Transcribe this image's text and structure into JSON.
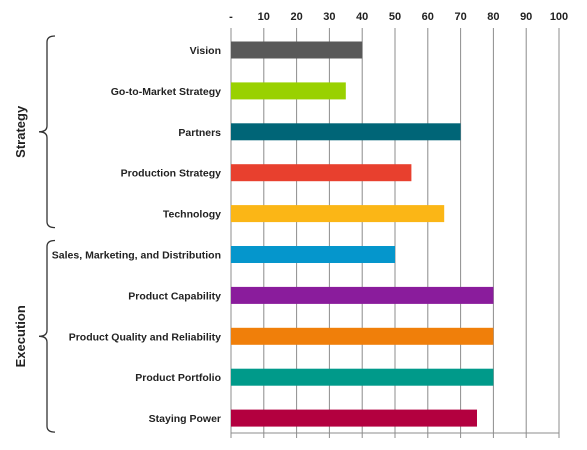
{
  "chart_data": {
    "type": "bar",
    "orientation": "horizontal",
    "title": "",
    "xlabel": "",
    "ylabel": "",
    "xlim": [
      0,
      100
    ],
    "x_ticks": [
      "-",
      "10",
      "20",
      "30",
      "40",
      "50",
      "60",
      "70",
      "80",
      "90",
      "100"
    ],
    "x_axis_position": "top",
    "grid": "vertical",
    "categories": [
      "Vision",
      "Go-to-Market Strategy",
      "Partners",
      "Production Strategy",
      "Technology",
      "Sales, Marketing, and Distribution",
      "Product Capability",
      "Product Quality and Reliability",
      "Product Portfolio",
      "Staying Power"
    ],
    "values": [
      40,
      35,
      70,
      55,
      65,
      50,
      80,
      80,
      80,
      75
    ],
    "colors": [
      "#595959",
      "#99d100",
      "#006577",
      "#e8402e",
      "#fbb616",
      "#0596cc",
      "#8a1c9c",
      "#f07f0a",
      "#009a8a",
      "#b3003f"
    ],
    "groups": [
      {
        "label": "Strategy",
        "categories": [
          "Vision",
          "Go-to-Market Strategy",
          "Partners",
          "Production Strategy",
          "Technology"
        ]
      },
      {
        "label": "Execution",
        "categories": [
          "Sales, Marketing, and Distribution",
          "Product Capability",
          "Product Quality and Reliability",
          "Product Portfolio",
          "Staying Power"
        ]
      }
    ]
  }
}
